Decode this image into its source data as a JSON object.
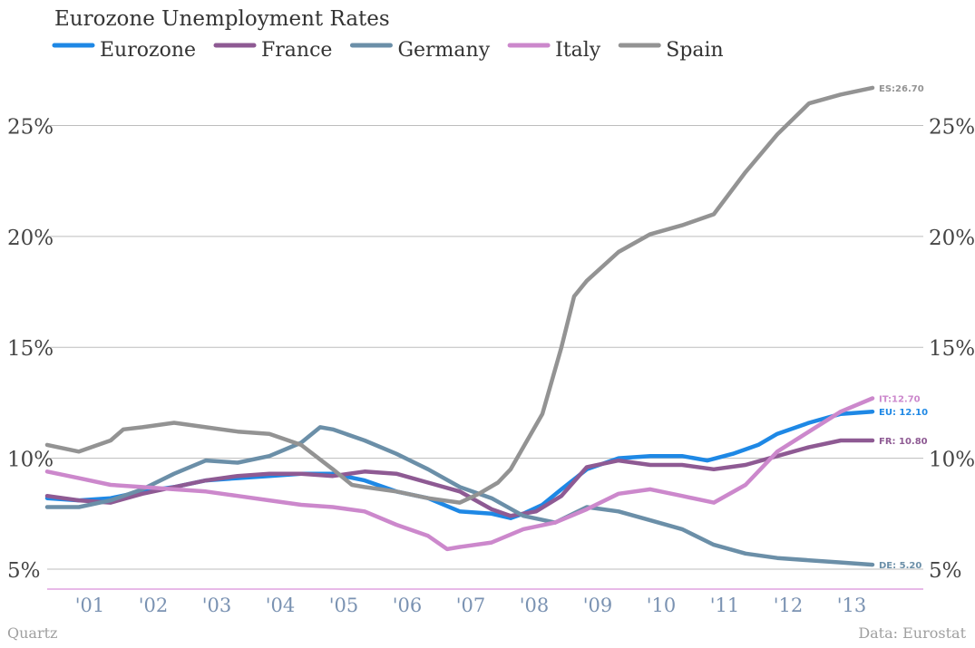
{
  "chart_data": {
    "type": "line",
    "title": "Eurozone Unemployment Rates",
    "source": "Data: Eurostat",
    "credit": "Quartz",
    "x_tick_labels": [
      "'01",
      "'02",
      "'03",
      "'04",
      "'05",
      "'06",
      "'07",
      "'08",
      "'09",
      "'10",
      "'11",
      "'12",
      "'13"
    ],
    "xlim": [
      2000.5,
      2014.3
    ],
    "y_tick_labels": [
      "5%",
      "10%",
      "15%",
      "20%",
      "25%"
    ],
    "y_ticks": [
      5,
      10,
      15,
      20,
      25
    ],
    "ylim": [
      4.1,
      27.8
    ],
    "grid": true,
    "legend_position": "top-left",
    "series": [
      {
        "name": "Eurozone",
        "color": "#1e88e5",
        "end_label": "EU: 12.10",
        "points": [
          [
            2000.5,
            8.2
          ],
          [
            2001.0,
            8.1
          ],
          [
            2001.5,
            8.2
          ],
          [
            2002.0,
            8.5
          ],
          [
            2002.5,
            8.7
          ],
          [
            2003.0,
            9.0
          ],
          [
            2003.5,
            9.1
          ],
          [
            2004.0,
            9.2
          ],
          [
            2004.5,
            9.3
          ],
          [
            2005.0,
            9.3
          ],
          [
            2005.5,
            9.0
          ],
          [
            2006.0,
            8.5
          ],
          [
            2006.5,
            8.2
          ],
          [
            2007.0,
            7.6
          ],
          [
            2007.5,
            7.5
          ],
          [
            2007.8,
            7.3
          ],
          [
            2008.0,
            7.5
          ],
          [
            2008.3,
            7.9
          ],
          [
            2008.6,
            8.6
          ],
          [
            2009.0,
            9.5
          ],
          [
            2009.5,
            10.0
          ],
          [
            2010.0,
            10.1
          ],
          [
            2010.5,
            10.1
          ],
          [
            2010.9,
            9.9
          ],
          [
            2011.3,
            10.2
          ],
          [
            2011.7,
            10.6
          ],
          [
            2012.0,
            11.1
          ],
          [
            2012.5,
            11.6
          ],
          [
            2013.0,
            12.0
          ],
          [
            2013.5,
            12.1
          ]
        ]
      },
      {
        "name": "France",
        "color": "#8e5a93",
        "end_label": "FR: 10.80",
        "points": [
          [
            2000.5,
            8.3
          ],
          [
            2001.0,
            8.1
          ],
          [
            2001.5,
            8.0
          ],
          [
            2002.0,
            8.4
          ],
          [
            2002.5,
            8.7
          ],
          [
            2003.0,
            9.0
          ],
          [
            2003.5,
            9.2
          ],
          [
            2004.0,
            9.3
          ],
          [
            2004.5,
            9.3
          ],
          [
            2005.0,
            9.2
          ],
          [
            2005.5,
            9.4
          ],
          [
            2006.0,
            9.3
          ],
          [
            2006.5,
            8.9
          ],
          [
            2007.0,
            8.5
          ],
          [
            2007.5,
            7.7
          ],
          [
            2007.8,
            7.4
          ],
          [
            2008.2,
            7.6
          ],
          [
            2008.6,
            8.3
          ],
          [
            2009.0,
            9.6
          ],
          [
            2009.5,
            9.9
          ],
          [
            2010.0,
            9.7
          ],
          [
            2010.5,
            9.7
          ],
          [
            2011.0,
            9.5
          ],
          [
            2011.5,
            9.7
          ],
          [
            2012.0,
            10.1
          ],
          [
            2012.5,
            10.5
          ],
          [
            2013.0,
            10.8
          ],
          [
            2013.5,
            10.8
          ]
        ]
      },
      {
        "name": "Germany",
        "color": "#6b8fa8",
        "end_label": "DE: 5.20",
        "points": [
          [
            2000.5,
            7.8
          ],
          [
            2001.0,
            7.8
          ],
          [
            2001.5,
            8.1
          ],
          [
            2002.0,
            8.6
          ],
          [
            2002.5,
            9.3
          ],
          [
            2003.0,
            9.9
          ],
          [
            2003.5,
            9.8
          ],
          [
            2004.0,
            10.1
          ],
          [
            2004.5,
            10.7
          ],
          [
            2004.8,
            11.4
          ],
          [
            2005.0,
            11.3
          ],
          [
            2005.5,
            10.8
          ],
          [
            2006.0,
            10.2
          ],
          [
            2006.5,
            9.5
          ],
          [
            2007.0,
            8.7
          ],
          [
            2007.5,
            8.2
          ],
          [
            2008.0,
            7.4
          ],
          [
            2008.5,
            7.1
          ],
          [
            2009.0,
            7.8
          ],
          [
            2009.5,
            7.6
          ],
          [
            2010.0,
            7.2
          ],
          [
            2010.5,
            6.8
          ],
          [
            2011.0,
            6.1
          ],
          [
            2011.5,
            5.7
          ],
          [
            2012.0,
            5.5
          ],
          [
            2012.5,
            5.4
          ],
          [
            2013.0,
            5.3
          ],
          [
            2013.5,
            5.2
          ]
        ]
      },
      {
        "name": "Italy",
        "color": "#cc88cc",
        "end_label": "IT:12.70",
        "points": [
          [
            2000.5,
            9.4
          ],
          [
            2001.0,
            9.1
          ],
          [
            2001.5,
            8.8
          ],
          [
            2002.0,
            8.7
          ],
          [
            2002.5,
            8.6
          ],
          [
            2003.0,
            8.5
          ],
          [
            2003.5,
            8.3
          ],
          [
            2004.0,
            8.1
          ],
          [
            2004.5,
            7.9
          ],
          [
            2005.0,
            7.8
          ],
          [
            2005.5,
            7.6
          ],
          [
            2006.0,
            7.0
          ],
          [
            2006.5,
            6.5
          ],
          [
            2006.8,
            5.9
          ],
          [
            2007.0,
            6.0
          ],
          [
            2007.5,
            6.2
          ],
          [
            2008.0,
            6.8
          ],
          [
            2008.5,
            7.1
          ],
          [
            2009.0,
            7.7
          ],
          [
            2009.5,
            8.4
          ],
          [
            2010.0,
            8.6
          ],
          [
            2010.5,
            8.3
          ],
          [
            2011.0,
            8.0
          ],
          [
            2011.5,
            8.8
          ],
          [
            2012.0,
            10.3
          ],
          [
            2012.5,
            11.2
          ],
          [
            2013.0,
            12.1
          ],
          [
            2013.5,
            12.7
          ]
        ]
      },
      {
        "name": "Spain",
        "color": "#939393",
        "end_label": "ES:26.70",
        "points": [
          [
            2000.5,
            10.6
          ],
          [
            2001.0,
            10.3
          ],
          [
            2001.5,
            10.8
          ],
          [
            2001.7,
            11.3
          ],
          [
            2002.0,
            11.4
          ],
          [
            2002.5,
            11.6
          ],
          [
            2003.0,
            11.4
          ],
          [
            2003.5,
            11.2
          ],
          [
            2004.0,
            11.1
          ],
          [
            2004.5,
            10.6
          ],
          [
            2005.0,
            9.5
          ],
          [
            2005.3,
            8.8
          ],
          [
            2005.5,
            8.7
          ],
          [
            2006.0,
            8.5
          ],
          [
            2006.5,
            8.2
          ],
          [
            2007.0,
            8.0
          ],
          [
            2007.3,
            8.4
          ],
          [
            2007.6,
            8.9
          ],
          [
            2007.8,
            9.5
          ],
          [
            2008.0,
            10.5
          ],
          [
            2008.3,
            12.0
          ],
          [
            2008.6,
            15.0
          ],
          [
            2008.8,
            17.3
          ],
          [
            2009.0,
            18.0
          ],
          [
            2009.5,
            19.3
          ],
          [
            2010.0,
            20.1
          ],
          [
            2010.5,
            20.5
          ],
          [
            2011.0,
            21.0
          ],
          [
            2011.5,
            22.9
          ],
          [
            2012.0,
            24.6
          ],
          [
            2012.5,
            26.0
          ],
          [
            2013.0,
            26.4
          ],
          [
            2013.5,
            26.7
          ]
        ]
      }
    ]
  }
}
